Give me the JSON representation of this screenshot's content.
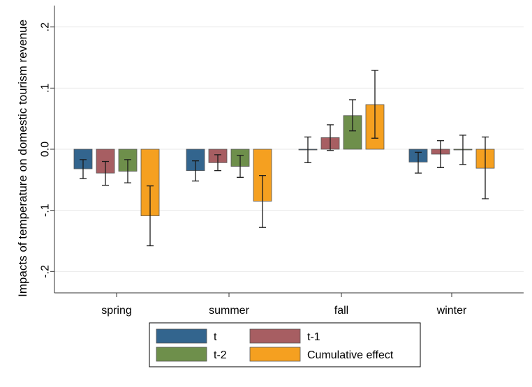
{
  "chart_data": {
    "type": "bar",
    "title": "",
    "xlabel": "",
    "ylabel": "Impacts of temperature on domestic tourism revenue",
    "ylim": [
      -0.235,
      0.235
    ],
    "yticks": [
      -0.2,
      -0.1,
      0.0,
      0.1,
      0.2
    ],
    "ytick_labels": [
      "-.2",
      "-.1",
      "0.0",
      ".1",
      ".2"
    ],
    "categories": [
      "spring",
      "summer",
      "fall",
      "winter"
    ],
    "series": [
      {
        "name": "t",
        "color": "#33658e",
        "values": [
          -0.032,
          -0.035,
          -0.001,
          -0.021
        ],
        "ci_low": [
          -0.048,
          -0.052,
          -0.022,
          -0.039
        ],
        "ci_high": [
          -0.017,
          -0.019,
          0.02,
          -0.005
        ]
      },
      {
        "name": "t-1",
        "color": "#a75e62",
        "values": [
          -0.039,
          -0.022,
          0.019,
          -0.008
        ],
        "ci_low": [
          -0.059,
          -0.035,
          -0.002,
          -0.03
        ],
        "ci_high": [
          -0.02,
          -0.009,
          0.04,
          0.014
        ]
      },
      {
        "name": "t-2",
        "color": "#6e8f4b",
        "values": [
          -0.036,
          -0.028,
          0.055,
          -0.001
        ],
        "ci_low": [
          -0.055,
          -0.046,
          0.03,
          -0.025
        ],
        "ci_high": [
          -0.017,
          -0.01,
          0.081,
          0.023
        ]
      },
      {
        "name": "Cumulative effect",
        "color": "#f5a020",
        "values": [
          -0.109,
          -0.085,
          0.073,
          -0.031
        ],
        "ci_low": [
          -0.158,
          -0.128,
          0.018,
          -0.081
        ],
        "ci_high": [
          -0.06,
          -0.043,
          0.129,
          0.02
        ]
      }
    ],
    "grid": true,
    "legend": "bottom-center"
  }
}
